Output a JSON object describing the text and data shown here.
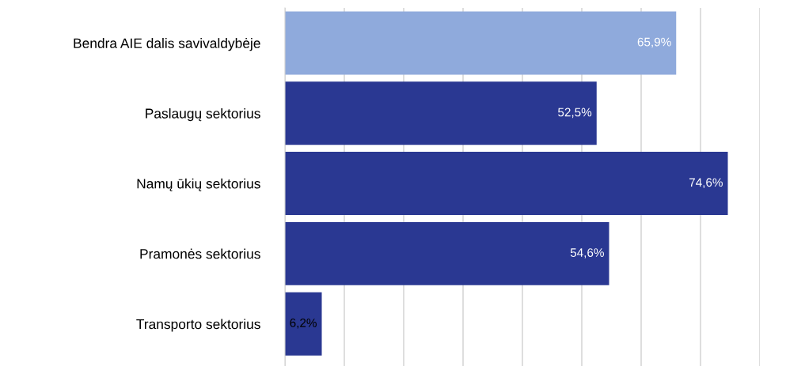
{
  "chart_data": {
    "type": "bar",
    "orientation": "horizontal",
    "categories": [
      "Bendra AIE dalis savivaldybėje",
      "Paslaugų sektorius",
      "Namų ūkių sektorius",
      "Pramonės sektorius",
      "Transporto sektorius"
    ],
    "values": [
      65.9,
      52.5,
      74.6,
      54.6,
      6.2
    ],
    "value_labels": [
      "65,9%",
      "52,5%",
      "74,6%",
      "54,6%",
      "6,2%"
    ],
    "colors": [
      "#8faadc",
      "#2a3892",
      "#2a3892",
      "#2a3892",
      "#2a3892"
    ],
    "xticks": [
      {
        "value": 0,
        "label": null
      },
      {
        "value": 10,
        "label": null
      },
      {
        "value": 20,
        "label": null
      },
      {
        "value": 30,
        "label": null
      },
      {
        "value": 40,
        "label": null
      },
      {
        "value": 50,
        "label": null
      },
      {
        "value": 60,
        "label": null
      },
      {
        "value": 70,
        "label": null
      },
      {
        "value": 80,
        "label": null
      }
    ],
    "grid": "x",
    "tick_labels": "y"
  }
}
